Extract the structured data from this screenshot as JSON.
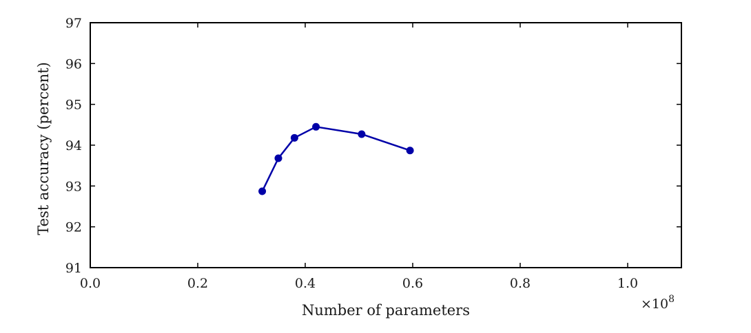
{
  "chart_data": {
    "type": "line",
    "title": "",
    "xlabel": "Number of parameters",
    "ylabel": "Test accuracy (percent)",
    "x_multiplier": "×10",
    "x_multiplier_exponent": "8",
    "xlim": [
      0.0,
      1.1
    ],
    "ylim": [
      91,
      97
    ],
    "xticks": [
      0.0,
      0.2,
      0.4,
      0.6,
      0.8,
      1.0
    ],
    "xtick_labels": [
      "0.0",
      "0.2",
      "0.4",
      "0.6",
      "0.8",
      "1.0"
    ],
    "yticks": [
      91,
      92,
      93,
      94,
      95,
      96,
      97
    ],
    "ytick_labels": [
      "91",
      "92",
      "93",
      "94",
      "95",
      "96",
      "97"
    ],
    "grid": false,
    "legend": "none",
    "series": [
      {
        "color": "#0000a8",
        "marker": "circle",
        "x": [
          0.32,
          0.35,
          0.38,
          0.42,
          0.505,
          0.595
        ],
        "y": [
          92.87,
          93.68,
          94.18,
          94.45,
          94.27,
          93.87
        ]
      }
    ]
  }
}
